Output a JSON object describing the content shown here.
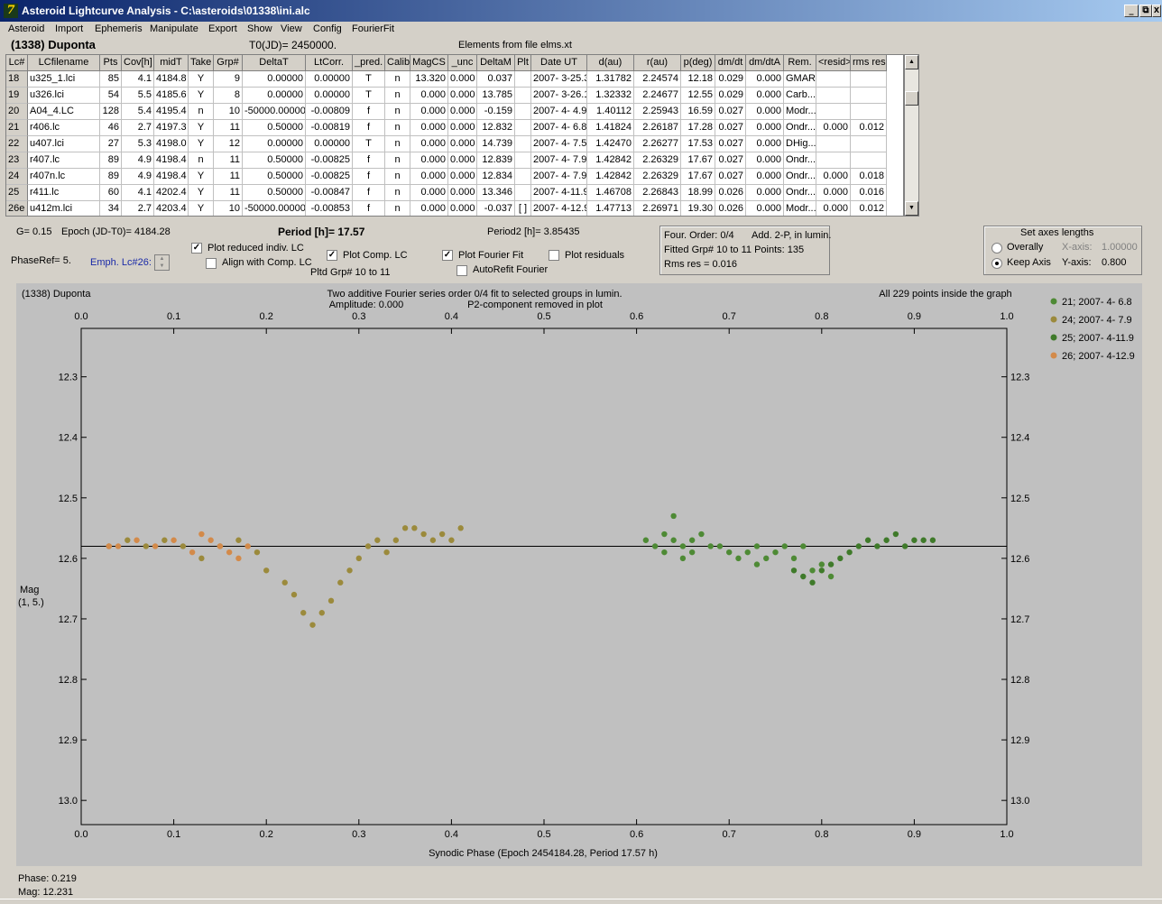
{
  "window": {
    "title": "Asteroid Lightcurve Analysis - C:\\asteroids\\01338\\ini.alc",
    "icon": "app-icon",
    "controls": [
      "_",
      "⧉",
      "X"
    ]
  },
  "menu": [
    "Asteroid",
    "Import",
    "Ephemeris",
    "Manipulate",
    "Export",
    "Show",
    "View",
    "Config",
    "FourierFit"
  ],
  "header": {
    "asteroid": "(1338) Duponta",
    "t0": "T0(JD)= 2450000.",
    "elements": "Elements from file elms.xt"
  },
  "table": {
    "columns": [
      "Lc#",
      "LCfilename",
      "Pts",
      "Cov[h]",
      "midT",
      "Take",
      "Grp#",
      "DeltaT",
      "LtCorr.",
      "_pred.",
      "Calib.",
      "MagCS",
      "_unc",
      "DeltaM",
      "Plt",
      "Date UT",
      "d(au)",
      "r(au)",
      "p(deg)",
      "dm/dt",
      "dm/dtA",
      "Rem.",
      "<resid>",
      "rms res"
    ],
    "rows": [
      [
        "18",
        "u325_1.lci",
        "85",
        "4.1",
        "4184.8",
        "Y",
        "9",
        "0.00000",
        "0.00000",
        "T",
        "n",
        "13.320",
        "0.000",
        "0.037",
        "",
        "2007- 3-25.3",
        "1.31782",
        "2.24574",
        "12.18",
        "0.029",
        "0.000",
        "GMAR",
        "",
        ""
      ],
      [
        "19",
        "u326.lci",
        "54",
        "5.5",
        "4185.6",
        "Y",
        "8",
        "0.00000",
        "0.00000",
        "T",
        "n",
        "0.000",
        "0.000",
        "13.785",
        "",
        "2007- 3-26.1",
        "1.32332",
        "2.24677",
        "12.55",
        "0.029",
        "0.000",
        "Carb...",
        "",
        ""
      ],
      [
        "20",
        "A04_4.LC",
        "128",
        "5.4",
        "4195.4",
        "n",
        "10",
        "-50000.00000",
        "-0.00809",
        "f",
        "n",
        "0.000",
        "0.000",
        "-0.159",
        "",
        "2007- 4- 4.9",
        "1.40112",
        "2.25943",
        "16.59",
        "0.027",
        "0.000",
        "Modr...",
        "",
        ""
      ],
      [
        "21",
        "r406.lc",
        "46",
        "2.7",
        "4197.3",
        "Y",
        "11",
        "0.50000",
        "-0.00819",
        "f",
        "n",
        "0.000",
        "0.000",
        "12.832",
        "",
        "2007- 4- 6.8",
        "1.41824",
        "2.26187",
        "17.28",
        "0.027",
        "0.000",
        "Ondr...",
        "0.000",
        "0.012"
      ],
      [
        "22",
        "u407.lci",
        "27",
        "5.3",
        "4198.0",
        "Y",
        "12",
        "0.00000",
        "0.00000",
        "T",
        "n",
        "0.000",
        "0.000",
        "14.739",
        "",
        "2007- 4- 7.5",
        "1.42470",
        "2.26277",
        "17.53",
        "0.027",
        "0.000",
        "DHig...",
        "",
        ""
      ],
      [
        "23",
        "r407.lc",
        "89",
        "4.9",
        "4198.4",
        "n",
        "11",
        "0.50000",
        "-0.00825",
        "f",
        "n",
        "0.000",
        "0.000",
        "12.839",
        "",
        "2007- 4- 7.9",
        "1.42842",
        "2.26329",
        "17.67",
        "0.027",
        "0.000",
        "Ondr...",
        "",
        ""
      ],
      [
        "24",
        "r407n.lc",
        "89",
        "4.9",
        "4198.4",
        "Y",
        "11",
        "0.50000",
        "-0.00825",
        "f",
        "n",
        "0.000",
        "0.000",
        "12.834",
        "",
        "2007- 4- 7.9",
        "1.42842",
        "2.26329",
        "17.67",
        "0.027",
        "0.000",
        "Ondr...",
        "0.000",
        "0.018"
      ],
      [
        "25",
        "r411.lc",
        "60",
        "4.1",
        "4202.4",
        "Y",
        "11",
        "0.50000",
        "-0.00847",
        "f",
        "n",
        "0.000",
        "0.000",
        "13.346",
        "",
        "2007- 4-11.9",
        "1.46708",
        "2.26843",
        "18.99",
        "0.026",
        "0.000",
        "Ondr...",
        "0.000",
        "0.016"
      ],
      [
        "26e",
        "u412m.lci",
        "34",
        "2.7",
        "4203.4",
        "Y",
        "10",
        "-50000.00000",
        "-0.00853",
        "f",
        "n",
        "0.000",
        "0.000",
        "-0.037",
        "[ ]",
        "2007- 4-12.9",
        "1.47713",
        "2.26971",
        "19.30",
        "0.026",
        "0.000",
        "Modr...",
        "0.000",
        "0.012"
      ]
    ]
  },
  "controls": {
    "g": "G= 0.15",
    "epoch": "Epoch (JD-T0)= 4184.28",
    "period": "Period [h]= 17.57",
    "period2": "Period2 [h]= 3.85435",
    "phaseref": "PhaseRef= 5.",
    "emph": "Emph. Lc#26:",
    "plot_reduced": "Plot reduced indiv. LC",
    "align": "Align with Comp. LC",
    "plot_comp": "Plot Comp. LC",
    "pltd_grp": "Pltd Grp#  10 to   11",
    "plot_fourier": "Plot Fourier Fit",
    "autorefit": "AutoRefit Fourier",
    "plot_resid": "Plot residuals",
    "checked": {
      "plot_reduced": true,
      "align": false,
      "plot_comp": true,
      "plot_fourier": true,
      "autorefit": false,
      "plot_resid": false
    },
    "four_order": "Four. Order:  0/4",
    "add2p": "Add. 2-P, in lumin.",
    "fitted": "Fitted Grp# 10 to 11 Points: 135",
    "rms": "Rms res      = 0.016",
    "axes_title": "Set axes lengths",
    "overally": "Overally",
    "keep_axis": "Keep Axis",
    "xaxis_lbl": "X-axis:",
    "xaxis_val": "1.00000",
    "yaxis_lbl": "Y-axis:",
    "yaxis_val": "0.800"
  },
  "plot": {
    "name": "(1338) Duponta",
    "line1": "Two additive Fourier series order 0/4 fit to selected groups in lumin.",
    "line2": "Amplitude: 0.000",
    "line3": "P2-component removed in plot",
    "inside": "All 229 points inside the graph",
    "ylabel1": "Mag",
    "ylabel2": "(1, 5.)",
    "xlabel": "Synodic Phase (Epoch 2454184.28, Period 17.57 h)"
  },
  "chart_data": {
    "type": "scatter",
    "xlim": [
      0.0,
      1.0
    ],
    "ylim": [
      12.22,
      13.04
    ],
    "y_inverted": true,
    "xticks": [
      "0.0",
      "0.1",
      "0.2",
      "0.3",
      "0.4",
      "0.5",
      "0.6",
      "0.7",
      "0.8",
      "0.9",
      "1.0"
    ],
    "yticks": [
      "12.3",
      "12.4",
      "12.5",
      "12.6",
      "12.7",
      "12.8",
      "12.9",
      "13.0"
    ],
    "fit_line_mag": 12.58,
    "series": [
      {
        "name": "21; 2007- 4- 6.8",
        "color": "#4e8a35",
        "points": [
          [
            0.61,
            12.57
          ],
          [
            0.62,
            12.58
          ],
          [
            0.63,
            12.56
          ],
          [
            0.63,
            12.59
          ],
          [
            0.64,
            12.57
          ],
          [
            0.64,
            12.53
          ],
          [
            0.65,
            12.58
          ],
          [
            0.65,
            12.6
          ],
          [
            0.66,
            12.59
          ],
          [
            0.66,
            12.57
          ],
          [
            0.67,
            12.56
          ],
          [
            0.68,
            12.58
          ],
          [
            0.69,
            12.58
          ],
          [
            0.7,
            12.59
          ],
          [
            0.71,
            12.6
          ],
          [
            0.72,
            12.59
          ],
          [
            0.73,
            12.61
          ],
          [
            0.73,
            12.58
          ],
          [
            0.74,
            12.6
          ],
          [
            0.75,
            12.59
          ],
          [
            0.76,
            12.58
          ],
          [
            0.77,
            12.6
          ],
          [
            0.78,
            12.58
          ],
          [
            0.79,
            12.62
          ],
          [
            0.8,
            12.61
          ],
          [
            0.81,
            12.63
          ]
        ]
      },
      {
        "name": "24; 2007- 4- 7.9",
        "color": "#9b8a3c",
        "points": [
          [
            0.03,
            12.58
          ],
          [
            0.05,
            12.57
          ],
          [
            0.07,
            12.58
          ],
          [
            0.09,
            12.57
          ],
          [
            0.11,
            12.58
          ],
          [
            0.13,
            12.6
          ],
          [
            0.15,
            12.58
          ],
          [
            0.17,
            12.57
          ],
          [
            0.19,
            12.59
          ],
          [
            0.2,
            12.62
          ],
          [
            0.22,
            12.64
          ],
          [
            0.23,
            12.66
          ],
          [
            0.24,
            12.69
          ],
          [
            0.25,
            12.71
          ],
          [
            0.26,
            12.69
          ],
          [
            0.27,
            12.67
          ],
          [
            0.28,
            12.64
          ],
          [
            0.29,
            12.62
          ],
          [
            0.3,
            12.6
          ],
          [
            0.31,
            12.58
          ],
          [
            0.32,
            12.57
          ],
          [
            0.33,
            12.59
          ],
          [
            0.34,
            12.57
          ],
          [
            0.35,
            12.55
          ],
          [
            0.36,
            12.55
          ],
          [
            0.37,
            12.56
          ],
          [
            0.38,
            12.57
          ],
          [
            0.39,
            12.56
          ],
          [
            0.4,
            12.57
          ],
          [
            0.41,
            12.55
          ]
        ]
      },
      {
        "name": "25; 2007- 4-11.9",
        "color": "#3f7a2a",
        "points": [
          [
            0.77,
            12.62
          ],
          [
            0.78,
            12.63
          ],
          [
            0.79,
            12.64
          ],
          [
            0.8,
            12.62
          ],
          [
            0.81,
            12.61
          ],
          [
            0.82,
            12.6
          ],
          [
            0.83,
            12.59
          ],
          [
            0.84,
            12.58
          ],
          [
            0.85,
            12.57
          ],
          [
            0.86,
            12.58
          ],
          [
            0.87,
            12.57
          ],
          [
            0.88,
            12.56
          ],
          [
            0.89,
            12.58
          ],
          [
            0.9,
            12.57
          ],
          [
            0.91,
            12.57
          ],
          [
            0.92,
            12.57
          ]
        ]
      },
      {
        "name": "26; 2007- 4-12.9",
        "color": "#d38a4a",
        "points": [
          [
            0.03,
            12.58
          ],
          [
            0.04,
            12.58
          ],
          [
            0.06,
            12.57
          ],
          [
            0.08,
            12.58
          ],
          [
            0.1,
            12.57
          ],
          [
            0.12,
            12.59
          ],
          [
            0.13,
            12.56
          ],
          [
            0.14,
            12.57
          ],
          [
            0.15,
            12.58
          ],
          [
            0.16,
            12.59
          ],
          [
            0.17,
            12.6
          ],
          [
            0.18,
            12.58
          ]
        ]
      }
    ]
  },
  "status": {
    "phase": "Phase:  0.219",
    "mag": "Mag:    12.231"
  }
}
